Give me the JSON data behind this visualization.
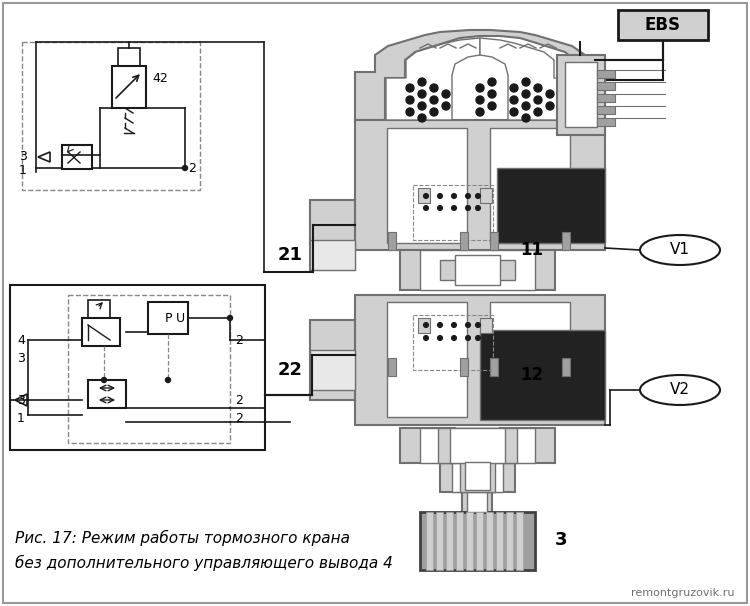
{
  "bg_color": "#ffffff",
  "fig_width": 7.5,
  "fig_height": 6.06,
  "caption_line1": "Рис. 17: Режим работы тормозного крана",
  "caption_line2": "без дополнительного управляющего вывода 4",
  "watermark": "remontgruzovik.ru",
  "gray_light": "#d0d0d0",
  "gray_mid": "#a0a0a0",
  "gray_dark": "#707070",
  "gray_darker": "#404040",
  "black": "#1a1a1a",
  "white": "#ffffff",
  "dashed_color": "#888888"
}
